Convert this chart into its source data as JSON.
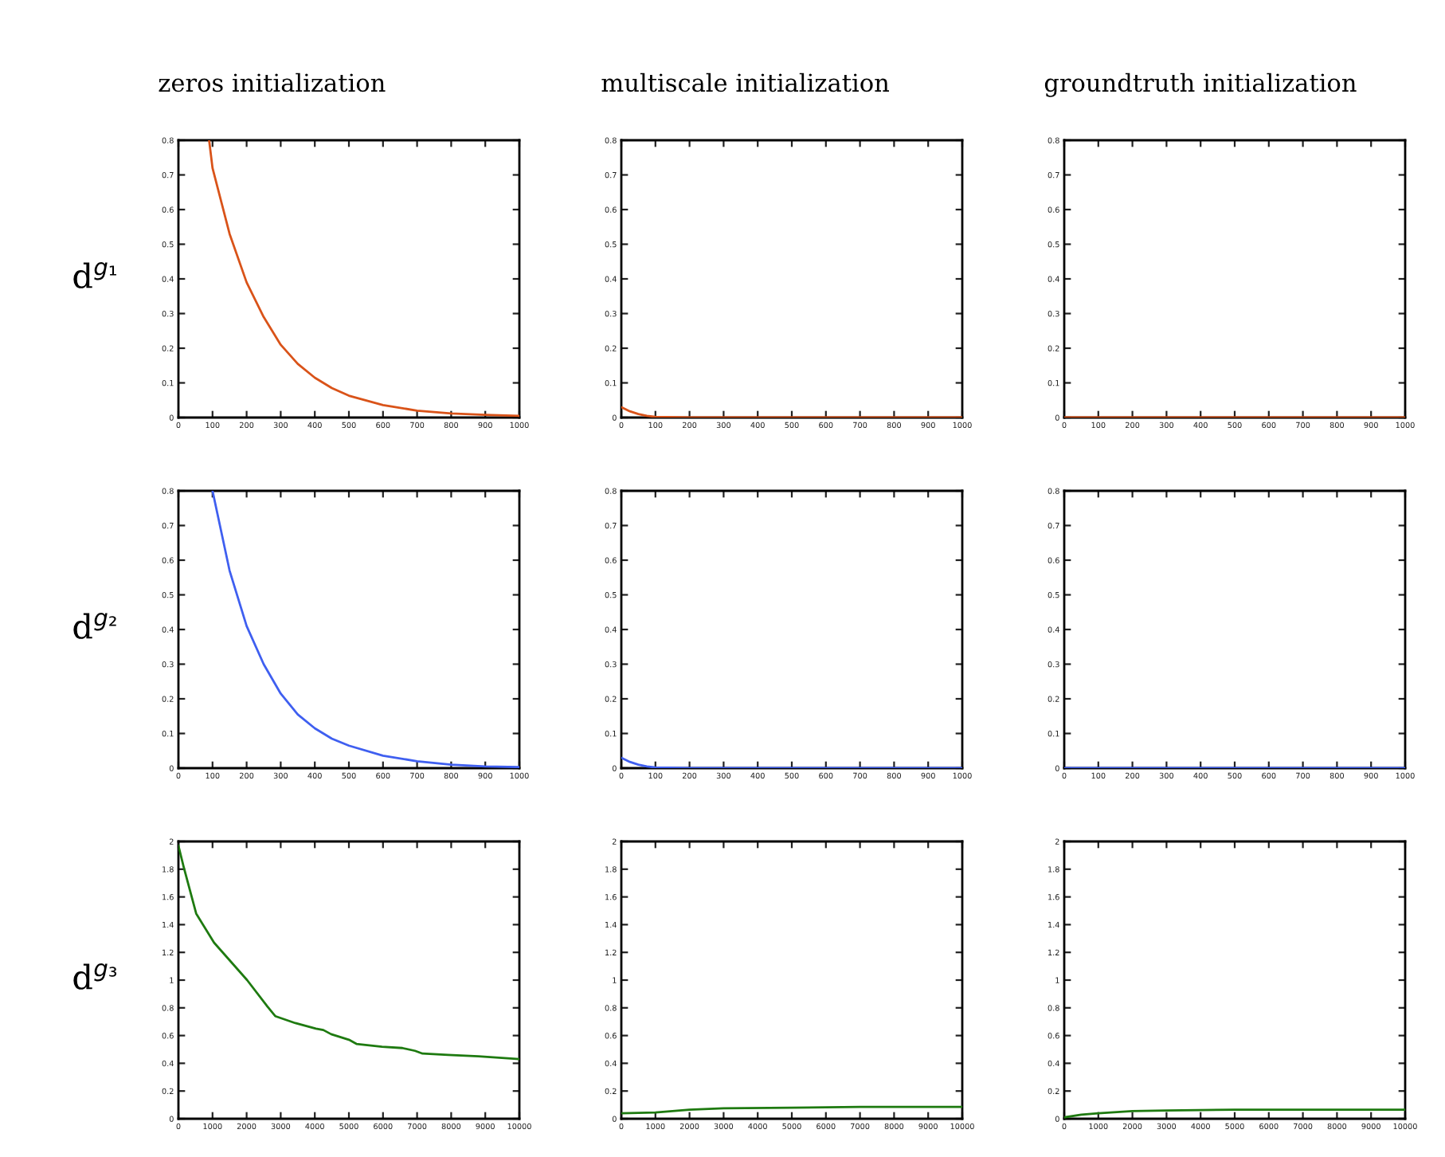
{
  "chart_data": [
    {
      "type": "line",
      "title": "zeros initialization",
      "ylabel": "d$^{g₁}$",
      "xlim": [
        0,
        1000
      ],
      "xticks": [
        0,
        100,
        200,
        300,
        400,
        500,
        600,
        700,
        800,
        900,
        1000
      ],
      "ylim": [
        0,
        0.8
      ],
      "yticks": [
        0,
        0.1,
        0.2,
        0.3,
        0.4,
        0.5,
        0.6,
        0.7,
        0.8
      ],
      "grid": false,
      "series": [
        {
          "color": "#d95319",
          "x": [
            90,
            100,
            150,
            200,
            250,
            300,
            350,
            400,
            450,
            500,
            600,
            700,
            800,
            900,
            1000
          ],
          "values": [
            0.8,
            0.72,
            0.53,
            0.39,
            0.29,
            0.21,
            0.155,
            0.115,
            0.085,
            0.063,
            0.036,
            0.02,
            0.012,
            0.008,
            0.005
          ]
        }
      ]
    },
    {
      "type": "line",
      "title": "multiscale initialization",
      "xlim": [
        0,
        1000
      ],
      "xticks": [
        0,
        100,
        200,
        300,
        400,
        500,
        600,
        700,
        800,
        900,
        1000
      ],
      "ylim": [
        0,
        0.8
      ],
      "yticks": [
        0,
        0.1,
        0.2,
        0.3,
        0.4,
        0.5,
        0.6,
        0.7,
        0.8
      ],
      "grid": false,
      "series": [
        {
          "color": "#d95319",
          "x": [
            0,
            25,
            50,
            75,
            100,
            200,
            1000
          ],
          "values": [
            0.03,
            0.018,
            0.01,
            0.005,
            0.002,
            0,
            0
          ]
        }
      ]
    },
    {
      "type": "line",
      "title": "groundtruth initialization",
      "xlim": [
        0,
        1000
      ],
      "xticks": [
        0,
        100,
        200,
        300,
        400,
        500,
        600,
        700,
        800,
        900,
        1000
      ],
      "ylim": [
        0,
        0.8
      ],
      "yticks": [
        0,
        0.1,
        0.2,
        0.3,
        0.4,
        0.5,
        0.6,
        0.7,
        0.8
      ],
      "grid": false,
      "series": [
        {
          "color": "#d95319",
          "x": [
            0,
            1000
          ],
          "values": [
            0,
            0
          ]
        }
      ]
    },
    {
      "type": "line",
      "ylabel": "d$^{g₂}$",
      "xlim": [
        0,
        1000
      ],
      "xticks": [
        0,
        100,
        200,
        300,
        400,
        500,
        600,
        700,
        800,
        900,
        1000
      ],
      "ylim": [
        0,
        0.8
      ],
      "yticks": [
        0,
        0.1,
        0.2,
        0.3,
        0.4,
        0.5,
        0.6,
        0.7,
        0.8
      ],
      "grid": false,
      "series": [
        {
          "color": "#3f5ff0",
          "x": [
            100,
            150,
            200,
            250,
            300,
            350,
            400,
            450,
            500,
            600,
            700,
            800,
            900,
            1000
          ],
          "values": [
            0.8,
            0.57,
            0.41,
            0.3,
            0.215,
            0.155,
            0.115,
            0.085,
            0.065,
            0.036,
            0.02,
            0.01,
            0.005,
            0.003
          ]
        }
      ]
    },
    {
      "type": "line",
      "xlim": [
        0,
        1000
      ],
      "xticks": [
        0,
        100,
        200,
        300,
        400,
        500,
        600,
        700,
        800,
        900,
        1000
      ],
      "ylim": [
        0,
        0.8
      ],
      "yticks": [
        0,
        0.1,
        0.2,
        0.3,
        0.4,
        0.5,
        0.6,
        0.7,
        0.8
      ],
      "grid": false,
      "series": [
        {
          "color": "#3f5ff0",
          "x": [
            0,
            25,
            50,
            75,
            100,
            200,
            1000
          ],
          "values": [
            0.03,
            0.018,
            0.01,
            0.005,
            0.002,
            0,
            0
          ]
        }
      ]
    },
    {
      "type": "line",
      "xlim": [
        0,
        1000
      ],
      "xticks": [
        0,
        100,
        200,
        300,
        400,
        500,
        600,
        700,
        800,
        900,
        1000
      ],
      "ylim": [
        0,
        0.8
      ],
      "yticks": [
        0,
        0.1,
        0.2,
        0.3,
        0.4,
        0.5,
        0.6,
        0.7,
        0.8
      ],
      "grid": false,
      "series": [
        {
          "color": "#3f5ff0",
          "x": [
            0,
            1000
          ],
          "values": [
            0,
            0
          ]
        }
      ]
    },
    {
      "type": "line",
      "ylabel": "d$^{g₃}$",
      "xlim": [
        0,
        10000
      ],
      "xticks": [
        0,
        1000,
        2000,
        3000,
        4000,
        5000,
        6000,
        7000,
        8000,
        9000,
        10000
      ],
      "ylim": [
        0,
        2
      ],
      "yticks": [
        0,
        0.2,
        0.4,
        0.6,
        0.8,
        1,
        1.2,
        1.4,
        1.6,
        1.8,
        2
      ],
      "grid": false,
      "series": [
        {
          "color": "#1e7a10",
          "x": [
            0,
            150,
            520,
            1045,
            2015,
            2610,
            2840,
            3430,
            4030,
            4250,
            4480,
            5000,
            5220,
            5970,
            6570,
            6940,
            7160,
            7910,
            8800,
            10000
          ],
          "values": [
            1.97,
            1.82,
            1.48,
            1.27,
            1.0,
            0.81,
            0.74,
            0.69,
            0.65,
            0.64,
            0.61,
            0.57,
            0.54,
            0.52,
            0.51,
            0.49,
            0.47,
            0.46,
            0.45,
            0.43
          ]
        }
      ]
    },
    {
      "type": "line",
      "xlim": [
        0,
        10000
      ],
      "xticks": [
        0,
        1000,
        2000,
        3000,
        4000,
        5000,
        6000,
        7000,
        8000,
        9000,
        10000
      ],
      "ylim": [
        0,
        2
      ],
      "yticks": [
        0,
        0.2,
        0.4,
        0.6,
        0.8,
        1,
        1.2,
        1.4,
        1.6,
        1.8,
        2
      ],
      "grid": false,
      "series": [
        {
          "color": "#1e7a10",
          "x": [
            0,
            1000,
            1500,
            2000,
            3000,
            5000,
            7000,
            10000
          ],
          "values": [
            0.04,
            0.045,
            0.055,
            0.065,
            0.075,
            0.08,
            0.085,
            0.085
          ]
        }
      ]
    },
    {
      "type": "line",
      "xlim": [
        0,
        10000
      ],
      "xticks": [
        0,
        1000,
        2000,
        3000,
        4000,
        5000,
        6000,
        7000,
        8000,
        9000,
        10000
      ],
      "ylim": [
        0,
        2
      ],
      "yticks": [
        0,
        0.2,
        0.4,
        0.6,
        0.8,
        1,
        1.2,
        1.4,
        1.6,
        1.8,
        2
      ],
      "grid": false,
      "series": [
        {
          "color": "#1e7a10",
          "x": [
            0,
            500,
            1000,
            2000,
            3000,
            5000,
            10000
          ],
          "values": [
            0.01,
            0.03,
            0.04,
            0.055,
            0.06,
            0.065,
            0.065
          ]
        }
      ]
    }
  ]
}
